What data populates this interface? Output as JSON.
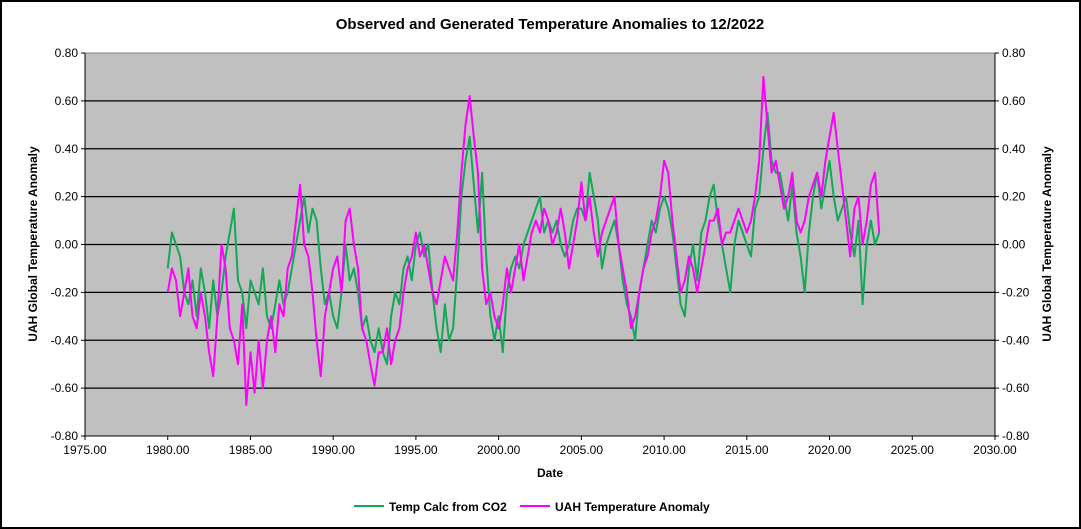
{
  "chart_data": {
    "type": "line",
    "title": "Observed and Generated Temperature Anomalies to 12/2022",
    "xlabel": "Date",
    "ylabel_left": "UAH Global Temperature Anomaly",
    "ylabel_right": "UAH Global Temperature Anomaly",
    "xlim": [
      1975,
      2030
    ],
    "ylim": [
      -0.8,
      0.8
    ],
    "x_ticks": [
      "1975.00",
      "1980.00",
      "1985.00",
      "1990.00",
      "1995.00",
      "2000.00",
      "2005.00",
      "2010.00",
      "2015.00",
      "2020.00",
      "2025.00",
      "2030.00"
    ],
    "y_ticks": [
      "0.80",
      "0.60",
      "0.40",
      "0.20",
      "0.00",
      "-0.20",
      "-0.40",
      "-0.60",
      "-0.80"
    ],
    "grid": "horizontal",
    "legend_position": "bottom",
    "x_start": 1980.0,
    "x_step": 0.25,
    "series": [
      {
        "name": "Temp Calc from CO2",
        "color": "#12a856",
        "values": [
          -0.1,
          0.05,
          0.0,
          -0.05,
          -0.2,
          -0.25,
          -0.15,
          -0.3,
          -0.1,
          -0.2,
          -0.35,
          -0.15,
          -0.3,
          -0.2,
          -0.05,
          0.05,
          0.15,
          -0.15,
          -0.2,
          -0.35,
          -0.15,
          -0.2,
          -0.25,
          -0.1,
          -0.3,
          -0.35,
          -0.25,
          -0.15,
          -0.25,
          -0.2,
          -0.1,
          0.0,
          0.1,
          0.2,
          0.05,
          0.15,
          0.1,
          -0.1,
          -0.25,
          -0.2,
          -0.3,
          -0.35,
          -0.2,
          0.0,
          -0.15,
          -0.1,
          -0.2,
          -0.35,
          -0.3,
          -0.4,
          -0.45,
          -0.35,
          -0.45,
          -0.5,
          -0.3,
          -0.2,
          -0.25,
          -0.1,
          -0.05,
          -0.15,
          0.0,
          0.05,
          -0.05,
          0.0,
          -0.2,
          -0.35,
          -0.45,
          -0.25,
          -0.4,
          -0.35,
          -0.1,
          0.2,
          0.35,
          0.45,
          0.25,
          0.05,
          0.3,
          -0.05,
          -0.3,
          -0.4,
          -0.3,
          -0.45,
          -0.2,
          -0.1,
          -0.05,
          -0.1,
          0.0,
          0.05,
          0.1,
          0.15,
          0.2,
          0.05,
          0.1,
          0.05,
          0.1,
          0.0,
          -0.05,
          0.0,
          0.1,
          0.15,
          0.15,
          0.1,
          0.3,
          0.2,
          0.1,
          -0.1,
          0.0,
          0.05,
          0.1,
          0.0,
          -0.15,
          -0.25,
          -0.3,
          -0.4,
          -0.2,
          -0.1,
          0.0,
          0.1,
          0.05,
          0.15,
          0.2,
          0.15,
          0.05,
          -0.1,
          -0.25,
          -0.3,
          -0.1,
          0.0,
          -0.15,
          0.05,
          0.1,
          0.2,
          0.25,
          0.1,
          0.0,
          -0.1,
          -0.2,
          0.0,
          0.1,
          0.05,
          0.0,
          -0.05,
          0.15,
          0.2,
          0.4,
          0.55,
          0.35,
          0.3,
          0.3,
          0.2,
          0.1,
          0.25,
          0.05,
          -0.05,
          -0.2,
          0.05,
          0.2,
          0.3,
          0.15,
          0.25,
          0.35,
          0.2,
          0.1,
          0.15,
          0.2,
          0.05,
          -0.05,
          0.1,
          -0.25,
          0.0,
          0.1,
          0.0,
          0.05
        ]
      },
      {
        "name": "UAH Temperature Anomaly",
        "color": "#ff00ff",
        "values": [
          -0.2,
          -0.1,
          -0.15,
          -0.3,
          -0.2,
          -0.1,
          -0.3,
          -0.35,
          -0.2,
          -0.3,
          -0.45,
          -0.55,
          -0.3,
          0.0,
          -0.1,
          -0.35,
          -0.4,
          -0.5,
          -0.25,
          -0.67,
          -0.45,
          -0.62,
          -0.4,
          -0.6,
          -0.4,
          -0.3,
          -0.45,
          -0.25,
          -0.3,
          -0.1,
          -0.05,
          0.1,
          0.25,
          0.0,
          -0.05,
          -0.2,
          -0.4,
          -0.55,
          -0.3,
          -0.2,
          -0.1,
          -0.05,
          -0.2,
          0.1,
          0.15,
          0.0,
          -0.1,
          -0.35,
          -0.4,
          -0.5,
          -0.59,
          -0.45,
          -0.45,
          -0.35,
          -0.5,
          -0.4,
          -0.35,
          -0.2,
          -0.1,
          -0.05,
          0.05,
          -0.05,
          0.0,
          -0.1,
          -0.2,
          -0.25,
          -0.15,
          -0.05,
          -0.1,
          -0.15,
          0.05,
          0.3,
          0.5,
          0.62,
          0.45,
          0.3,
          -0.1,
          -0.25,
          -0.2,
          -0.3,
          -0.35,
          -0.25,
          -0.1,
          -0.2,
          -0.1,
          0.0,
          -0.15,
          -0.05,
          0.05,
          0.1,
          0.05,
          0.15,
          0.1,
          0.0,
          0.05,
          0.15,
          0.05,
          -0.1,
          0.0,
          0.1,
          0.26,
          0.1,
          0.2,
          0.05,
          -0.05,
          0.05,
          0.1,
          0.15,
          0.2,
          0.0,
          -0.1,
          -0.2,
          -0.35,
          -0.3,
          -0.2,
          -0.1,
          -0.05,
          0.05,
          0.1,
          0.2,
          0.35,
          0.3,
          0.1,
          -0.05,
          -0.2,
          -0.15,
          -0.05,
          -0.1,
          -0.2,
          -0.1,
          0.0,
          0.1,
          0.1,
          0.15,
          0.0,
          0.05,
          0.05,
          0.1,
          0.15,
          0.1,
          0.05,
          0.1,
          0.2,
          0.35,
          0.7,
          0.5,
          0.3,
          0.35,
          0.25,
          0.15,
          0.2,
          0.3,
          0.1,
          0.05,
          0.1,
          0.2,
          0.25,
          0.3,
          0.2,
          0.35,
          0.45,
          0.55,
          0.4,
          0.25,
          0.1,
          -0.05,
          0.15,
          0.2,
          0.0,
          0.1,
          0.25,
          0.3,
          0.05
        ]
      }
    ]
  }
}
